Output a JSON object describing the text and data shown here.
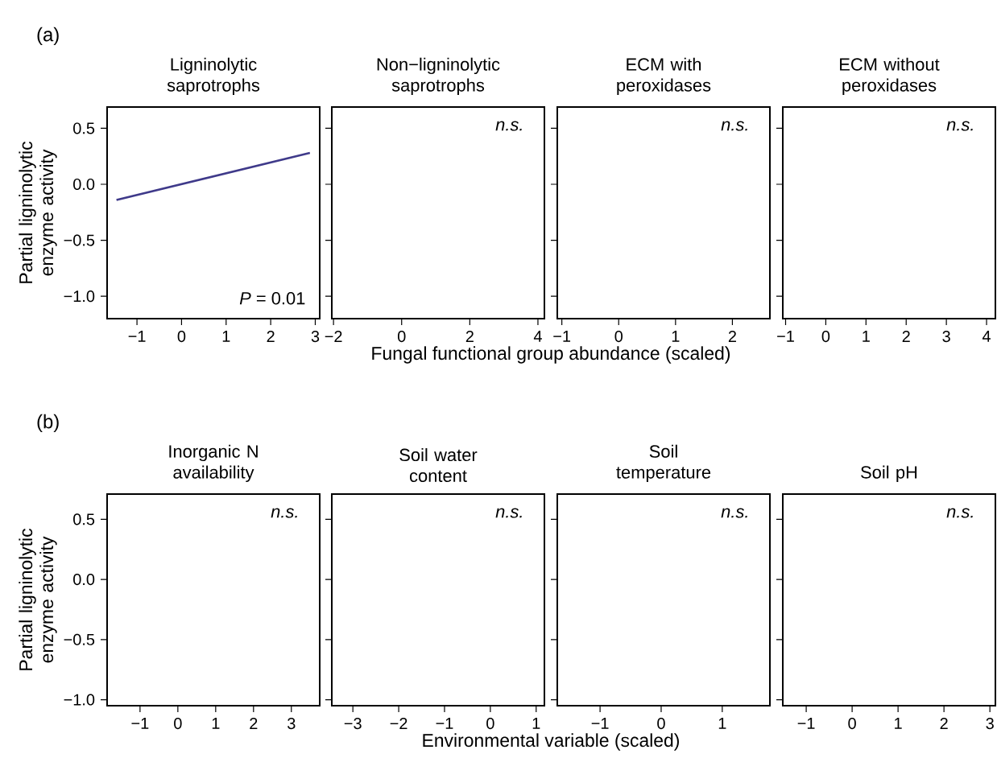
{
  "chart_data": [
    {
      "type": "line",
      "title": "Ligninolytic saprotrophs",
      "xlabel": "Fungal functional group abundance (scaled)",
      "ylabel": "Partial ligninolytic enzyme activity",
      "annotations": [
        "(a)",
        "*P* = 0.01"
      ],
      "xlim": [
        -1.67,
        3.1
      ],
      "xticks": [
        {
          "value": -1,
          "label": "−1"
        },
        0,
        1,
        2,
        3
      ],
      "ylim": [
        -1.2,
        0.69
      ],
      "yticks": [
        {
          "value": -1,
          "label": "−1.0"
        },
        {
          "value": -0.5,
          "label": "−0.5"
        },
        {
          "value": 0,
          "label": "0.0"
        },
        {
          "value": 0.5,
          "label": "0.5"
        }
      ],
      "series": [
        {
          "type": "line",
          "color": "#3f3a8a",
          "x": [
            -1.46,
            2.88
          ],
          "values": [
            -0.14,
            0.28
          ]
        }
      ]
    },
    {
      "type": "line",
      "title": "Non−ligninolytic saprotrophs",
      "annotations": [
        "n.s."
      ],
      "tick_labels": "x",
      "xlim": [
        -2.05,
        4.19
      ],
      "xticks": [
        {
          "value": -2,
          "label": "−2"
        },
        0,
        2,
        4
      ],
      "ylim": [
        -1.2,
        0.69
      ],
      "yticks": [
        {
          "value": -1,
          "label": null
        },
        {
          "value": -0.5,
          "label": null
        },
        {
          "value": 0,
          "label": null
        },
        {
          "value": 0.5,
          "label": null
        }
      ]
    },
    {
      "type": "line",
      "title": "ECM with peroxidases",
      "annotations": [
        "n.s."
      ],
      "tick_labels": "x",
      "xlim": [
        -1.08,
        2.66
      ],
      "xticks": [
        {
          "value": -1,
          "label": "−1"
        },
        0,
        1,
        2
      ],
      "ylim": [
        -1.2,
        0.69
      ],
      "yticks": [
        {
          "value": -1,
          "label": null
        },
        {
          "value": -0.5,
          "label": null
        },
        {
          "value": 0,
          "label": null
        },
        {
          "value": 0.5,
          "label": null
        }
      ]
    },
    {
      "type": "line",
      "title": "ECM without peroxidases",
      "annotations": [
        "n.s."
      ],
      "tick_labels": "x",
      "xlim": [
        -1.07,
        4.22
      ],
      "xticks": [
        {
          "value": -1,
          "label": "−1"
        },
        0,
        1,
        2,
        3,
        4
      ],
      "ylim": [
        -1.2,
        0.69
      ],
      "yticks": [
        {
          "value": -1,
          "label": null
        },
        {
          "value": -0.5,
          "label": null
        },
        {
          "value": 0,
          "label": null
        },
        {
          "value": 0.5,
          "label": null
        }
      ]
    },
    {
      "type": "line",
      "title": "Inorganic N availability",
      "xlabel": "Environmental variable (scaled)",
      "ylabel": "Partial ligninolytic enzyme activity",
      "annotations": [
        "(b)",
        "n.s."
      ],
      "xlim": [
        -1.87,
        3.75
      ],
      "xticks": [
        {
          "value": -1,
          "label": "−1"
        },
        0,
        1,
        2,
        3
      ],
      "ylim": [
        -1.05,
        0.71
      ],
      "yticks": [
        {
          "value": -1,
          "label": "−1.0"
        },
        {
          "value": -0.5,
          "label": "−0.5"
        },
        {
          "value": 0,
          "label": "0.0"
        },
        {
          "value": 0.5,
          "label": "0.5"
        }
      ]
    },
    {
      "type": "line",
      "title": "Soil water content",
      "annotations": [
        "n.s."
      ],
      "tick_labels": "x",
      "xlim": [
        -3.46,
        1.18
      ],
      "xticks": [
        {
          "value": -3,
          "label": "−3"
        },
        {
          "value": -2,
          "label": "−2"
        },
        {
          "value": -1,
          "label": "−1"
        },
        0,
        1
      ],
      "ylim": [
        -1.05,
        0.71
      ],
      "yticks": [
        {
          "value": -1,
          "label": null
        },
        {
          "value": -0.5,
          "label": null
        },
        {
          "value": 0,
          "label": null
        },
        {
          "value": 0.5,
          "label": null
        }
      ]
    },
    {
      "type": "line",
      "title": "Soil temperature",
      "annotations": [
        "n.s."
      ],
      "tick_labels": "x",
      "xlim": [
        -1.7,
        1.78
      ],
      "xticks": [
        {
          "value": -1,
          "label": "−1"
        },
        0,
        1
      ],
      "ylim": [
        -1.05,
        0.71
      ],
      "yticks": [
        {
          "value": -1,
          "label": null
        },
        {
          "value": -0.5,
          "label": null
        },
        {
          "value": 0,
          "label": null
        },
        {
          "value": 0.5,
          "label": null
        }
      ]
    },
    {
      "type": "line",
      "title": "Soil pH",
      "annotations": [
        "n.s."
      ],
      "tick_labels": "x",
      "xlim": [
        -1.51,
        3.12
      ],
      "xticks": [
        {
          "value": -1,
          "label": "−1"
        },
        0,
        1,
        2,
        3
      ],
      "ylim": [
        -1.05,
        0.71
      ],
      "yticks": [
        {
          "value": -1,
          "label": null
        },
        {
          "value": -0.5,
          "label": null
        },
        {
          "value": 0,
          "label": null
        },
        {
          "value": 0.5,
          "label": null
        }
      ]
    }
  ]
}
